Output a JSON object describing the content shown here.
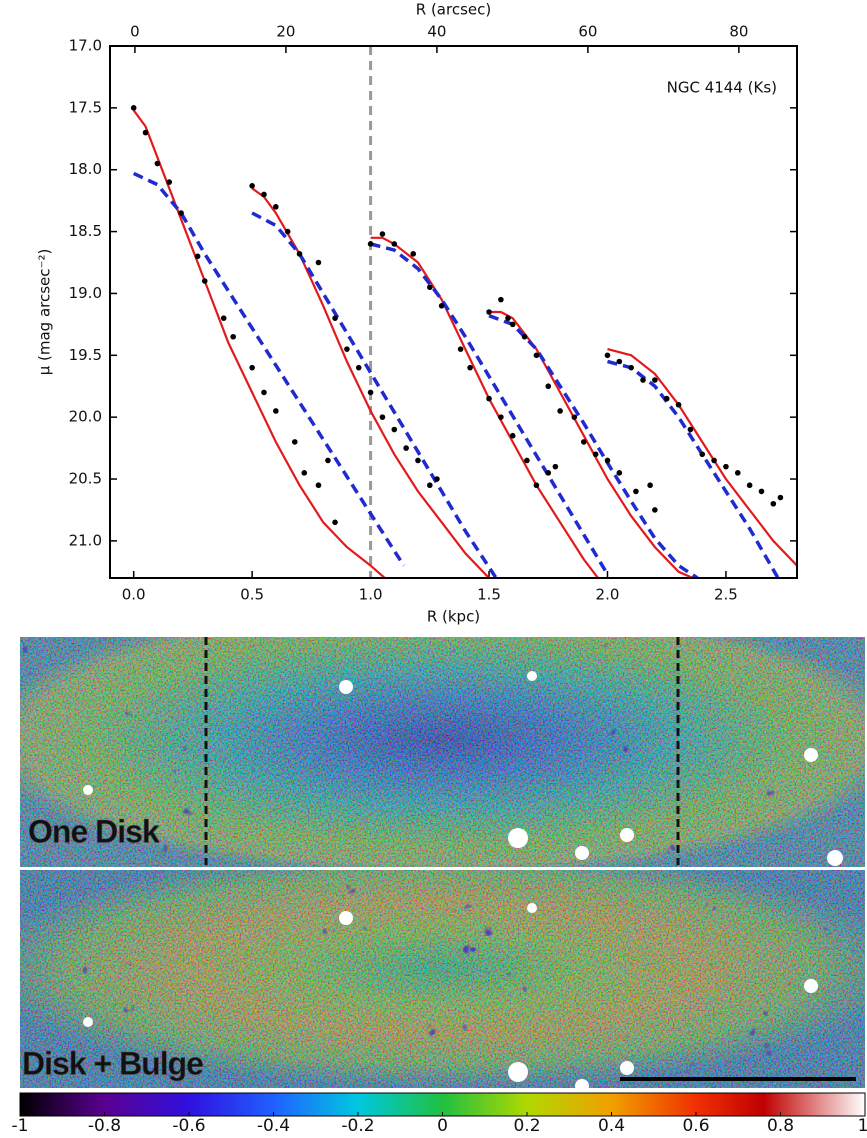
{
  "chart_data": [
    {
      "type": "line",
      "annotation": "NGC 4144 (Ks)",
      "xlabel": "R (kpc)",
      "x2label": "R (arcsec)",
      "ylabel": "μ (mag arcsec⁻²)",
      "xlim": [
        -0.1,
        2.8
      ],
      "xticks": [
        {
          "value": 0,
          "label": "0.0"
        },
        {
          "value": 0.5,
          "label": "0.5"
        },
        {
          "value": 1,
          "label": "1.0"
        },
        {
          "value": 1.5,
          "label": "1.5"
        },
        {
          "value": 2,
          "label": "2.0"
        },
        {
          "value": 2.5,
          "label": "2.5"
        }
      ],
      "x2lim": [
        -3.3,
        87.7
      ],
      "x2ticks": [
        0,
        20,
        40,
        60,
        80
      ],
      "ylim": [
        17.0,
        21.3
      ],
      "y_inverted": true,
      "yticks": [
        {
          "value": 17,
          "label": "17.0"
        },
        {
          "value": 17.5,
          "label": "17.5"
        },
        {
          "value": 18,
          "label": "18.0"
        },
        {
          "value": 18.5,
          "label": "18.5"
        },
        {
          "value": 19,
          "label": "19.0"
        },
        {
          "value": 19.5,
          "label": "19.5"
        },
        {
          "value": 20,
          "label": "20.0"
        },
        {
          "value": 20.5,
          "label": "20.5"
        },
        {
          "value": 21,
          "label": "21.0"
        }
      ],
      "vline": 1.0,
      "vline_color": "#999999",
      "series": [
        {
          "style": "solid",
          "color": "#e31a1c",
          "x": [
            0,
            0.05,
            0.1,
            0.2,
            0.3,
            0.4,
            0.5,
            0.6,
            0.7,
            0.8,
            0.9,
            1.0,
            1.06
          ],
          "values": [
            17.52,
            17.65,
            17.9,
            18.4,
            18.9,
            19.4,
            19.8,
            20.2,
            20.55,
            20.85,
            21.05,
            21.2,
            21.3
          ]
        },
        {
          "style": "dashed",
          "color": "#1f2bd0",
          "x": [
            0,
            0.1,
            0.2,
            0.3,
            0.4,
            0.5,
            0.6,
            0.7,
            0.8,
            0.9,
            1.0,
            1.14
          ],
          "values": [
            18.03,
            18.12,
            18.35,
            18.68,
            18.98,
            19.28,
            19.58,
            19.88,
            20.18,
            20.48,
            20.78,
            21.2
          ]
        },
        {
          "style": "dots",
          "color": "#000000",
          "x": [
            0,
            0.05,
            0.1,
            0.15,
            0.2,
            0.27,
            0.3,
            0.38,
            0.42,
            0.5,
            0.55,
            0.6,
            0.68,
            0.72,
            0.78,
            0.82,
            0.85
          ],
          "values": [
            17.5,
            17.7,
            17.95,
            18.1,
            18.35,
            18.7,
            18.9,
            19.2,
            19.35,
            19.6,
            19.8,
            19.95,
            20.2,
            20.45,
            20.55,
            20.35,
            20.85
          ]
        },
        {
          "style": "solid",
          "color": "#e31a1c",
          "x": [
            0.5,
            0.55,
            0.6,
            0.7,
            0.8,
            0.9,
            1.0,
            1.1,
            1.2,
            1.3,
            1.4,
            1.5
          ],
          "values": [
            18.15,
            18.22,
            18.35,
            18.68,
            19.1,
            19.55,
            19.95,
            20.3,
            20.6,
            20.85,
            21.1,
            21.3
          ]
        },
        {
          "style": "dashed",
          "color": "#1f2bd0",
          "x": [
            0.5,
            0.6,
            0.7,
            0.8,
            0.9,
            1.0,
            1.1,
            1.2,
            1.3,
            1.4,
            1.53
          ],
          "values": [
            18.35,
            18.45,
            18.68,
            19.0,
            19.32,
            19.64,
            19.96,
            20.28,
            20.6,
            20.92,
            21.3
          ]
        },
        {
          "style": "dots",
          "color": "#000000",
          "x": [
            0.5,
            0.55,
            0.6,
            0.65,
            0.7,
            0.78,
            0.85,
            0.9,
            0.95,
            1.0,
            1.05,
            1.1,
            1.15,
            1.2,
            1.25,
            1.28
          ],
          "values": [
            18.13,
            18.2,
            18.3,
            18.5,
            18.68,
            18.75,
            19.2,
            19.45,
            19.6,
            19.8,
            20.0,
            20.1,
            20.25,
            20.35,
            20.55,
            20.5
          ]
        },
        {
          "style": "solid",
          "color": "#e31a1c",
          "x": [
            1.0,
            1.05,
            1.1,
            1.2,
            1.3,
            1.4,
            1.5,
            1.6,
            1.7,
            1.8,
            1.9,
            1.96
          ],
          "values": [
            18.55,
            18.55,
            18.6,
            18.75,
            19.05,
            19.45,
            19.85,
            20.2,
            20.55,
            20.85,
            21.15,
            21.3
          ]
        },
        {
          "style": "dashed",
          "color": "#1f2bd0",
          "x": [
            1.0,
            1.1,
            1.2,
            1.3,
            1.4,
            1.5,
            1.6,
            1.7,
            1.8,
            1.9,
            2.0
          ],
          "values": [
            18.6,
            18.65,
            18.8,
            19.05,
            19.35,
            19.67,
            19.99,
            20.31,
            20.63,
            20.95,
            21.27
          ]
        },
        {
          "style": "dots",
          "color": "#000000",
          "x": [
            1.0,
            1.05,
            1.1,
            1.18,
            1.25,
            1.3,
            1.38,
            1.42,
            1.5,
            1.55,
            1.6,
            1.66,
            1.7,
            1.75,
            1.78
          ],
          "values": [
            18.6,
            18.52,
            18.6,
            18.68,
            18.95,
            19.1,
            19.45,
            19.6,
            19.85,
            20.0,
            20.15,
            20.35,
            20.55,
            20.45,
            20.4
          ]
        },
        {
          "style": "solid",
          "color": "#e31a1c",
          "x": [
            1.5,
            1.55,
            1.6,
            1.7,
            1.8,
            1.9,
            2.0,
            2.1,
            2.2,
            2.3,
            2.36
          ],
          "values": [
            19.15,
            19.15,
            19.2,
            19.45,
            19.8,
            20.15,
            20.5,
            20.8,
            21.05,
            21.25,
            21.3
          ]
        },
        {
          "style": "dashed",
          "color": "#1f2bd0",
          "x": [
            1.5,
            1.6,
            1.7,
            1.8,
            1.9,
            2.0,
            2.1,
            2.2,
            2.3,
            2.38
          ],
          "values": [
            19.18,
            19.25,
            19.45,
            19.75,
            20.05,
            20.37,
            20.68,
            20.98,
            21.2,
            21.3
          ]
        },
        {
          "style": "dots",
          "color": "#000000",
          "x": [
            1.5,
            1.55,
            1.58,
            1.6,
            1.65,
            1.7,
            1.75,
            1.8,
            1.86,
            1.9,
            1.95,
            2.0,
            2.05,
            2.12,
            2.18,
            2.2
          ],
          "values": [
            19.15,
            19.05,
            19.2,
            19.25,
            19.35,
            19.5,
            19.75,
            19.95,
            20.0,
            20.2,
            20.3,
            20.35,
            20.45,
            20.6,
            20.55,
            20.75
          ]
        },
        {
          "style": "solid",
          "color": "#e31a1c",
          "x": [
            2.0,
            2.1,
            2.2,
            2.3,
            2.4,
            2.5,
            2.6,
            2.7,
            2.8
          ],
          "values": [
            19.45,
            19.5,
            19.65,
            19.9,
            20.2,
            20.5,
            20.75,
            21.0,
            21.2
          ]
        },
        {
          "style": "dashed",
          "color": "#1f2bd0",
          "x": [
            2.0,
            2.1,
            2.2,
            2.3,
            2.4,
            2.5,
            2.6,
            2.72
          ],
          "values": [
            19.55,
            19.6,
            19.75,
            20.0,
            20.3,
            20.6,
            20.9,
            21.3
          ]
        },
        {
          "style": "dots",
          "color": "#000000",
          "x": [
            2.0,
            2.05,
            2.1,
            2.15,
            2.2,
            2.25,
            2.3,
            2.35,
            2.4,
            2.45,
            2.5,
            2.55,
            2.6,
            2.65,
            2.7,
            2.73
          ],
          "values": [
            19.5,
            19.55,
            19.6,
            19.7,
            19.7,
            19.85,
            19.9,
            20.1,
            20.3,
            20.35,
            20.4,
            20.45,
            20.55,
            20.6,
            20.7,
            20.65
          ]
        }
      ]
    },
    {
      "type": "colorbar",
      "xlim": [
        -1,
        1
      ],
      "xticks": [
        -1,
        -0.8,
        -0.6,
        -0.4,
        -0.2,
        0,
        0.2,
        0.4,
        0.6,
        0.8,
        1
      ]
    }
  ],
  "maps": {
    "panels": [
      {
        "label": "One Disk"
      },
      {
        "label": "Disk + Bulge"
      }
    ]
  }
}
